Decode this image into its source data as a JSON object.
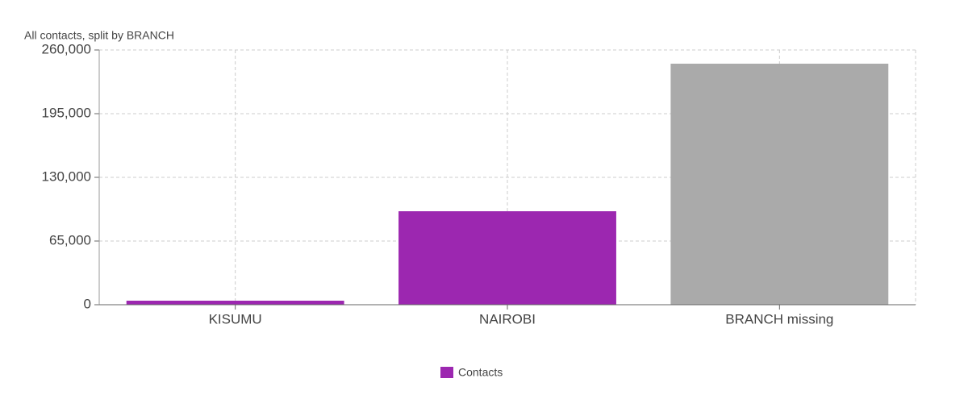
{
  "chart_data": {
    "type": "bar",
    "title": "All contacts, split by BRANCH",
    "categories": [
      "KISUMU",
      "NAIROBI",
      "BRANCH missing"
    ],
    "series": [
      {
        "name": "Contacts",
        "color": "#9c27b0",
        "point_colors": [
          "#9c27b0",
          "#9c27b0",
          "#aaaaaa"
        ],
        "values": [
          4100,
          95400,
          246000
        ]
      }
    ],
    "ylim": [
      0,
      260000
    ],
    "yticks": [
      0,
      {
        "value": 65000,
        "label": "65,000"
      },
      {
        "value": 130000,
        "label": "130,000"
      },
      {
        "value": 195000,
        "label": "195,000"
      },
      {
        "value": 260000,
        "label": "260,000"
      }
    ],
    "grid": true
  }
}
